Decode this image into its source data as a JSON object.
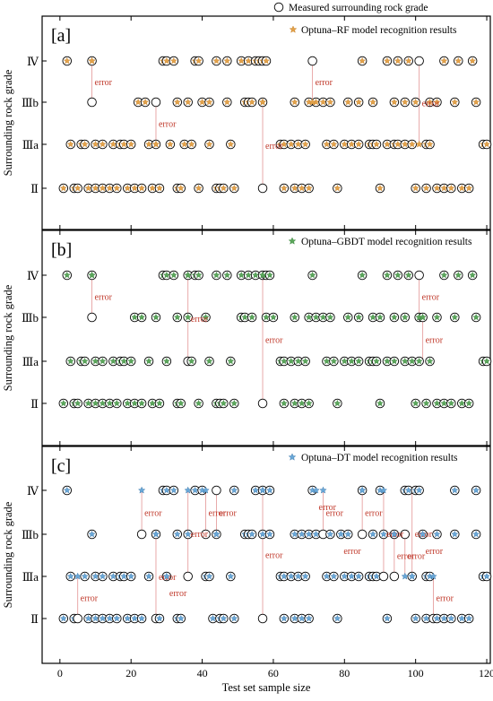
{
  "figure": {
    "xlabel": "Test set sample size",
    "ylabel": "Surrounding rock grade",
    "x_ticks": [
      0,
      20,
      40,
      60,
      80,
      100,
      120
    ],
    "xlim": [
      -5,
      121
    ],
    "grades": [
      "Ⅱ",
      "Ⅲa",
      "Ⅲb",
      "Ⅳ"
    ],
    "error_label": "error",
    "measured_legend": "Measured surrounding rock grade"
  },
  "chart_data": [
    {
      "type": "scatter",
      "panel_label": "[a]",
      "legend": "Optuna–RF model recognition results",
      "marker_color": "#e3a24a",
      "marker_edge": "#c07a20",
      "measured": {
        "IV": [
          2,
          9,
          29,
          30,
          32,
          38,
          39,
          44,
          47,
          51,
          53,
          55,
          56,
          57,
          58,
          71,
          85,
          92,
          95,
          98,
          101,
          108,
          112,
          116
        ],
        "IIIb": [
          9,
          22,
          24,
          27,
          33,
          36,
          40,
          42,
          47,
          52,
          53,
          54,
          57,
          66,
          70,
          72,
          74,
          76,
          81,
          84,
          88,
          94,
          97,
          100,
          104,
          106,
          111,
          117
        ],
        "IIIa": [
          3,
          6,
          7,
          10,
          12,
          15,
          17,
          18,
          20,
          25,
          27,
          31,
          35,
          37,
          42,
          48,
          62,
          63,
          65,
          67,
          69,
          75,
          77,
          80,
          82,
          84,
          87,
          88,
          89,
          92,
          94,
          95,
          97,
          99,
          103,
          104,
          119,
          120
        ],
        "II": [
          1,
          4,
          5,
          8,
          10,
          12,
          14,
          16,
          19,
          21,
          23,
          26,
          28,
          33,
          34,
          39,
          44,
          45,
          46,
          49,
          57,
          63,
          66,
          68,
          70,
          78,
          90,
          100,
          103,
          106,
          108,
          110,
          113,
          115
        ]
      },
      "errors": [
        {
          "x": 9,
          "measured": "IIIb",
          "predicted": "IV"
        },
        {
          "x": 27,
          "measured": "IIIb",
          "predicted": "IIIa"
        },
        {
          "x": 57,
          "measured": "II",
          "predicted": "IIIb"
        },
        {
          "x": 71,
          "measured": "IV",
          "predicted": "IIIb"
        },
        {
          "x": 101,
          "measured": "IV",
          "predicted": "IIIa"
        }
      ]
    },
    {
      "type": "scatter",
      "panel_label": "[b]",
      "legend": "Optuna–GBDT model recognition results",
      "marker_color": "#5aa65a",
      "marker_edge": "#2e7d32",
      "measured": {
        "IV": [
          2,
          9,
          29,
          30,
          32,
          36,
          38,
          39,
          44,
          47,
          51,
          53,
          55,
          57,
          58,
          59,
          71,
          85,
          92,
          95,
          98,
          101,
          108,
          112,
          116
        ],
        "IIIb": [
          9,
          21,
          23,
          27,
          33,
          36,
          41,
          51,
          52,
          54,
          58,
          60,
          66,
          70,
          72,
          74,
          76,
          81,
          84,
          88,
          90,
          94,
          97,
          101,
          102,
          106,
          111,
          117
        ],
        "IIIa": [
          3,
          6,
          7,
          10,
          12,
          15,
          17,
          18,
          20,
          25,
          30,
          36,
          37,
          42,
          48,
          62,
          63,
          65,
          67,
          69,
          75,
          77,
          80,
          82,
          84,
          87,
          88,
          89,
          92,
          94,
          97,
          99,
          101,
          104,
          119,
          120
        ],
        "II": [
          1,
          4,
          5,
          8,
          10,
          12,
          14,
          16,
          19,
          21,
          23,
          26,
          28,
          33,
          34,
          39,
          44,
          45,
          46,
          49,
          57,
          63,
          66,
          68,
          70,
          78,
          90,
          100,
          103,
          106,
          108,
          110,
          113,
          115
        ]
      },
      "errors": [
        {
          "x": 9,
          "measured": "IIIb",
          "predicted": "IV"
        },
        {
          "x": 36,
          "measured": "IIIa",
          "predicted": "IV"
        },
        {
          "x": 57,
          "measured": "II",
          "predicted": "IV"
        },
        {
          "x": 101,
          "measured": "IV",
          "predicted": "IIIb"
        },
        {
          "x": 102,
          "measured": "IIIa",
          "predicted": "IIIb"
        }
      ]
    },
    {
      "type": "scatter",
      "panel_label": "[c]",
      "legend": "Optuna–DT model recognition results",
      "marker_color": "#6aa8d8",
      "marker_edge": "#2d6da3",
      "measured": {
        "IV": [
          2,
          29,
          30,
          32,
          38,
          40,
          44,
          49,
          55,
          57,
          59,
          71,
          85,
          90,
          97,
          98,
          100,
          101,
          111,
          117
        ],
        "IIIb": [
          9,
          23,
          27,
          33,
          36,
          41,
          44,
          52,
          53,
          54,
          57,
          59,
          66,
          68,
          70,
          72,
          74,
          76,
          79,
          81,
          85,
          88,
          91,
          94,
          97,
          102,
          106,
          111,
          117
        ],
        "IIIa": [
          3,
          7,
          10,
          12,
          15,
          17,
          18,
          20,
          25,
          30,
          36,
          41,
          42,
          48,
          62,
          63,
          65,
          67,
          69,
          75,
          77,
          80,
          82,
          84,
          87,
          88,
          89,
          91,
          94,
          99,
          103,
          104,
          119,
          120
        ],
        "II": [
          1,
          4,
          5,
          8,
          10,
          12,
          14,
          16,
          19,
          21,
          23,
          27,
          28,
          33,
          34,
          43,
          45,
          46,
          49,
          57,
          63,
          66,
          68,
          70,
          78,
          92,
          100,
          103,
          105,
          106,
          108,
          110,
          113,
          115
        ]
      },
      "errors": [
        {
          "x": 5,
          "measured": "II",
          "predicted": "IIIa"
        },
        {
          "x": 23,
          "measured": "IIIb",
          "predicted": "IV"
        },
        {
          "x": 27,
          "measured": "II",
          "predicted": "IIIb"
        },
        {
          "x": 30,
          "measured": "IIIa",
          "predicted": "IIIa"
        },
        {
          "x": 36,
          "measured": "IIIa",
          "predicted": "IV"
        },
        {
          "x": 41,
          "measured": "IIIb",
          "predicted": "IV"
        },
        {
          "x": 44,
          "measured": "IV",
          "predicted": "IIIb"
        },
        {
          "x": 57,
          "measured": "II",
          "predicted": "IV"
        },
        {
          "x": 72,
          "measured": "IV",
          "predicted": "IV"
        },
        {
          "x": 74,
          "measured": "IIIb",
          "predicted": "IV"
        },
        {
          "x": 79,
          "measured": "IIIb",
          "predicted": "IIIb"
        },
        {
          "x": 85,
          "measured": "IIIb",
          "predicted": "IV"
        },
        {
          "x": 91,
          "measured": "IIIa",
          "predicted": "IV"
        },
        {
          "x": 94,
          "measured": "IIIa",
          "predicted": "IIIb"
        },
        {
          "x": 97,
          "measured": "IIIb",
          "predicted": "IIIa"
        },
        {
          "x": 99,
          "measured": "IV",
          "predicted": "IIIa"
        },
        {
          "x": 102,
          "measured": "IIIb",
          "predicted": "IIIb"
        },
        {
          "x": 105,
          "measured": "II",
          "predicted": "IIIa"
        }
      ]
    }
  ]
}
